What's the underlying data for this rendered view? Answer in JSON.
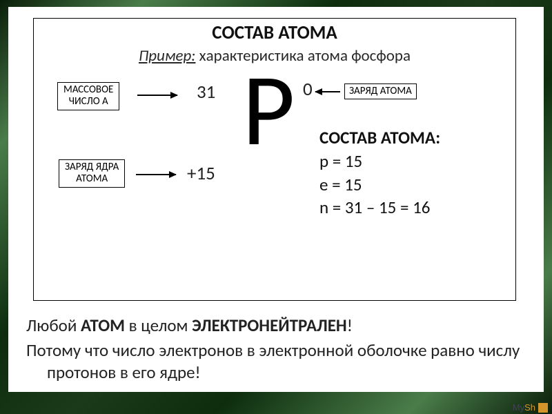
{
  "title": "СОСТАВ АТОМА",
  "subtitle": {
    "example_label": "Пример:",
    "text": " характеристика атома фосфора"
  },
  "element": {
    "symbol": "P",
    "mass_number": "31",
    "atom_charge": "0",
    "nucleus_charge": "+15"
  },
  "labels": {
    "mass_line1": "МАССОВОЕ",
    "mass_line2": "ЧИСЛО А",
    "atom_charge": "ЗАРЯД АТОМА",
    "nucleus_line1": "ЗАРЯД ЯДРА",
    "nucleus_line2": "АТОМА"
  },
  "composition": {
    "header": "СОСТАВ АТОМА:",
    "p": "p = 15",
    "e": "e = 15",
    "n": "n = 31 – 15 = 16"
  },
  "paragraph1": {
    "pre": "Любой ",
    "b1": "АТОМ",
    "mid": " в целом ",
    "b2": "ЭЛЕКТРОНЕЙТРАЛЕН",
    "post": "!"
  },
  "paragraph2": "Потому что число электронов в электронной оболочке равно числу протонов в его ядре!",
  "footer": {
    "my": "My",
    "sh": "Sh"
  },
  "style": {
    "bg_gradient": [
      "#0a1e0a",
      "#4a7c4a",
      "#0d2d0d",
      "#1a3a1a"
    ],
    "slide_bg": "#ffffff",
    "border_color": "#000000",
    "title_fontsize": 27,
    "subtitle_fontsize": 23,
    "symbol_fontsize": 148,
    "number_fontsize": 27,
    "compo_fontsize": 25,
    "labelbox_fontsize": 15,
    "para_fontsize": 25,
    "accent_color": "#d4952a",
    "text_color": "#111111"
  }
}
